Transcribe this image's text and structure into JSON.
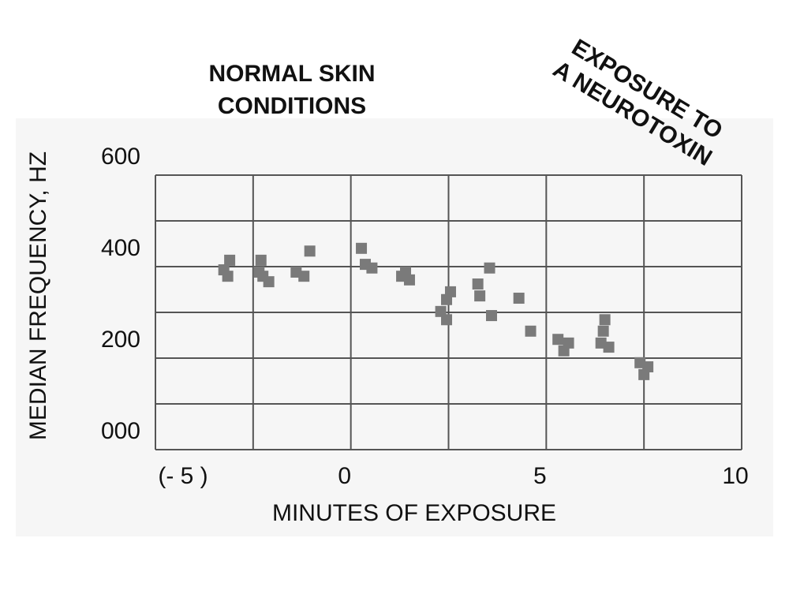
{
  "chart_data": {
    "type": "scatter",
    "x_label": "MINUTES OF EXPOSURE",
    "y_label": "MEDIAN FREQUENCY, HZ",
    "annotations": [
      [
        "NORMAL SKIN",
        "CONDITIONS"
      ],
      [
        "EXPOSURE TO",
        "A NEUROTOXIN"
      ]
    ],
    "xlim": [
      -5,
      10
    ],
    "ylim": [
      0,
      600
    ],
    "xticks": [
      {
        "value": -5,
        "label": "(- 5 )"
      },
      0,
      5,
      10
    ],
    "yticks": [
      {
        "value": 0,
        "label": "000"
      },
      200,
      400,
      600
    ],
    "minor_xticks": [
      -2.5,
      2.5,
      7.5
    ],
    "minor_yticks": [
      100,
      300,
      500
    ],
    "grid": true,
    "color": "#7a7a7a",
    "x": [
      -3.15,
      -3.1,
      -3.25,
      -2.3,
      -2.25,
      -2.1,
      -2.35,
      -1.4,
      -1.2,
      -1.05,
      0.27,
      0.37,
      0.54,
      1.3,
      1.5,
      1.4,
      2.3,
      2.45,
      2.55,
      2.45,
      3.25,
      3.3,
      3.55,
      3.6,
      4.3,
      4.6,
      5.3,
      5.45,
      5.57,
      6.4,
      6.5,
      6.6,
      6.46,
      7.4,
      7.5,
      7.6
    ],
    "y": [
      379,
      414,
      393,
      414,
      379,
      367,
      388,
      388,
      379,
      434,
      440,
      405,
      397,
      379,
      371,
      388,
      302,
      284,
      345,
      328,
      362,
      336,
      397,
      293,
      331,
      259,
      241,
      216,
      233,
      233,
      284,
      224,
      259,
      190,
      164,
      181
    ]
  }
}
